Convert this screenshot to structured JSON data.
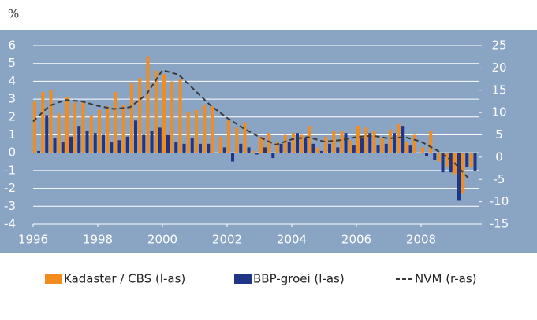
{
  "chart_data": {
    "type": "bar",
    "y_unit": "%",
    "x": [
      1996,
      1996.25,
      1996.5,
      1996.75,
      1997,
      1997.25,
      1997.5,
      1997.75,
      1998,
      1998.25,
      1998.5,
      1998.75,
      1999,
      1999.25,
      1999.5,
      1999.75,
      2000,
      2000.25,
      2000.5,
      2000.75,
      2001,
      2001.25,
      2001.5,
      2001.75,
      2002,
      2002.25,
      2002.5,
      2002.75,
      2003,
      2003.25,
      2003.5,
      2003.75,
      2004,
      2004.25,
      2004.5,
      2004.75,
      2005,
      2005.25,
      2005.5,
      2005.75,
      2006,
      2006.25,
      2006.5,
      2006.75,
      2007,
      2007.25,
      2007.5,
      2007.75,
      2008,
      2008.25,
      2008.5,
      2008.75,
      2009,
      2009.25,
      2009.5
    ],
    "series": [
      {
        "name": "Kadaster / CBS (l-as)",
        "color": "#f28c1e",
        "values": [
          2.9,
          3.4,
          3.5,
          2.2,
          3.1,
          2.8,
          2.9,
          2.1,
          2.4,
          2.6,
          3.4,
          2.7,
          3.9,
          4.2,
          5.4,
          4.6,
          4.4,
          4.0,
          4.1,
          2.3,
          2.4,
          2.7,
          2.6,
          0.9,
          1.8,
          1.4,
          1.7,
          0.1,
          0.9,
          1.1,
          0.6,
          1.0,
          1.1,
          1.0,
          1.5,
          0.3,
          0.9,
          1.2,
          1.2,
          0.7,
          1.5,
          1.4,
          1.2,
          0.8,
          1.3,
          1.6,
          0.6,
          1.0,
          0.3,
          1.2,
          -0.5,
          -0.8,
          -1.2,
          -2.3,
          -0.8
        ]
      },
      {
        "name": "BBP-groei (l-as)",
        "color": "#1f3585",
        "values": [
          0.1,
          2.1,
          0.8,
          0.6,
          0.9,
          1.5,
          1.2,
          1.1,
          1.0,
          0.6,
          0.7,
          0.9,
          1.8,
          1.0,
          1.2,
          1.4,
          1.0,
          0.6,
          0.5,
          0.8,
          0.5,
          0.5,
          0.0,
          0.3,
          -0.5,
          0.5,
          0.3,
          -0.1,
          0.3,
          -0.3,
          0.5,
          0.6,
          1.1,
          0.8,
          0.5,
          0.1,
          0.5,
          0.3,
          1.1,
          0.4,
          0.8,
          1.1,
          0.4,
          0.5,
          1.1,
          1.5,
          0.4,
          0.0,
          -0.2,
          -0.4,
          -1.1,
          -1.1,
          -2.7,
          -0.8,
          -1.0
        ]
      },
      {
        "name": "NVM (r-as)",
        "color": "#3a3a3a",
        "type": "line",
        "axis": "y2",
        "dash": true,
        "x": [
          1996,
          1996.5,
          1997,
          1997.5,
          1998,
          1998.5,
          1999,
          1999.5,
          2000,
          2000.5,
          2001,
          2001.5,
          2002,
          2002.5,
          2003,
          2003.5,
          2004,
          2004.5,
          2005,
          2005.5,
          2006,
          2006.5,
          2007,
          2007.5,
          2008,
          2008.5,
          2009,
          2009.5
        ],
        "values": [
          8,
          11.5,
          12.8,
          12.5,
          11.5,
          10.8,
          11.2,
          14,
          19.5,
          18.5,
          15,
          11.5,
          8.8,
          6.5,
          4.5,
          2.8,
          4,
          4.5,
          3.5,
          3.8,
          4.5,
          4.8,
          4.2,
          4.5,
          3.5,
          1.5,
          -1,
          -5
        ]
      }
    ],
    "xlim": [
      1996,
      2009.78
    ],
    "xticks": [
      1996,
      1998,
      2000,
      2002,
      2004,
      2006,
      2008
    ],
    "ylim": [
      -4,
      6
    ],
    "yticks": [
      -4,
      -3,
      -2,
      -1,
      0,
      1,
      2,
      3,
      4,
      5,
      6
    ],
    "y2lim": [
      -15,
      25
    ],
    "y2ticks": [
      -15,
      -10,
      -5,
      0,
      5,
      10,
      15,
      20,
      25
    ],
    "grid": true,
    "legend": "bottom",
    "background": "#8aa4c4"
  }
}
